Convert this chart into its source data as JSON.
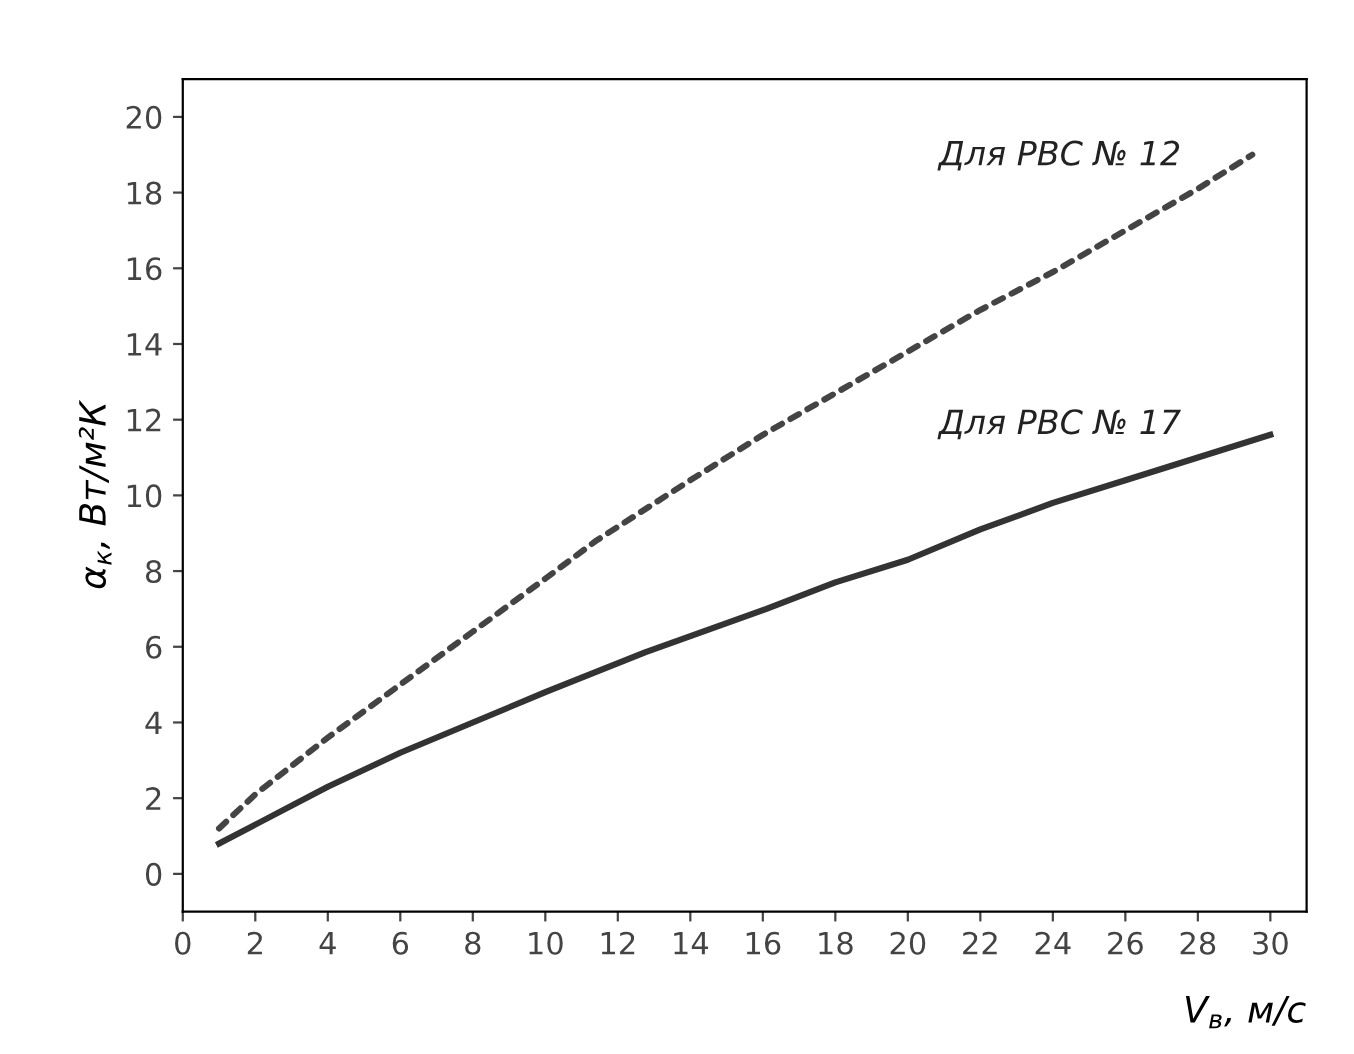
{
  "chart_data": {
    "type": "line",
    "xlabel": "V$_{в}$, м/с",
    "ylabel": "α$_{к}$, Вт/м²К",
    "series": [
      {
        "name": "Для РВС № 12",
        "color": "#444444",
        "line_style": "dashed",
        "x": [
          1,
          2,
          4,
          6,
          8,
          10,
          11.4,
          14,
          16,
          18,
          20,
          22,
          24,
          26,
          28,
          29.5
        ],
        "values": [
          1.2,
          2.1,
          3.6,
          5.0,
          6.4,
          7.8,
          8.8,
          10.4,
          11.6,
          12.7,
          13.8,
          14.9,
          15.9,
          17.0,
          18.1,
          19.0
        ]
      },
      {
        "name": "Для РВС № 17",
        "color": "#333333",
        "line_style": "solid",
        "x": [
          1,
          2,
          4,
          6,
          8,
          10,
          12.75,
          16.1,
          18,
          20,
          22,
          24,
          26,
          28,
          30
        ],
        "values": [
          0.8,
          1.3,
          2.3,
          3.2,
          4.0,
          4.8,
          5.85,
          7.0,
          7.7,
          8.3,
          9.1,
          9.8,
          10.4,
          11.0,
          11.6
        ]
      }
    ],
    "xlim": [
      0,
      31
    ],
    "ylim": [
      -1,
      21
    ],
    "xticks": [
      0,
      2,
      4,
      6,
      8,
      10,
      12,
      14,
      16,
      18,
      20,
      22,
      24,
      26,
      28,
      30
    ],
    "yticks": [
      0,
      2,
      4,
      6,
      8,
      10,
      12,
      14,
      16,
      18,
      20
    ]
  }
}
